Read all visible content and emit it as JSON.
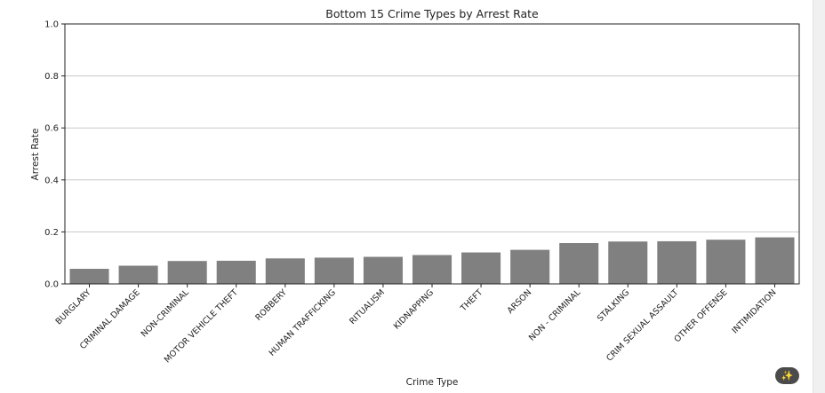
{
  "chart_data": {
    "type": "bar",
    "title": "Bottom 15 Crime Types by Arrest Rate",
    "xlabel": "Crime Type",
    "ylabel": "Arrest Rate",
    "ylim": [
      0,
      1.0
    ],
    "yticks": [
      "0.0",
      "0.2",
      "0.4",
      "0.6",
      "0.8",
      "1.0"
    ],
    "grid": "horizontal",
    "bar_color": "#808080",
    "categories": [
      "BURGLARY",
      "CRIMINAL DAMAGE",
      "NON-CRIMINAL",
      "MOTOR VEHICLE THEFT",
      "ROBBERY",
      "HUMAN TRAFFICKING",
      "RITUALISM",
      "KIDNAPPING",
      "THEFT",
      "ARSON",
      "NON - CRIMINAL",
      "STALKING",
      "CRIM SEXUAL ASSAULT",
      "OTHER OFFENSE",
      "INTIMIDATION"
    ],
    "values": [
      0.058,
      0.07,
      0.088,
      0.089,
      0.098,
      0.101,
      0.104,
      0.111,
      0.121,
      0.131,
      0.157,
      0.163,
      0.164,
      0.17,
      0.179
    ]
  },
  "ui": {
    "fab_icon": "magic-wand-icon"
  }
}
